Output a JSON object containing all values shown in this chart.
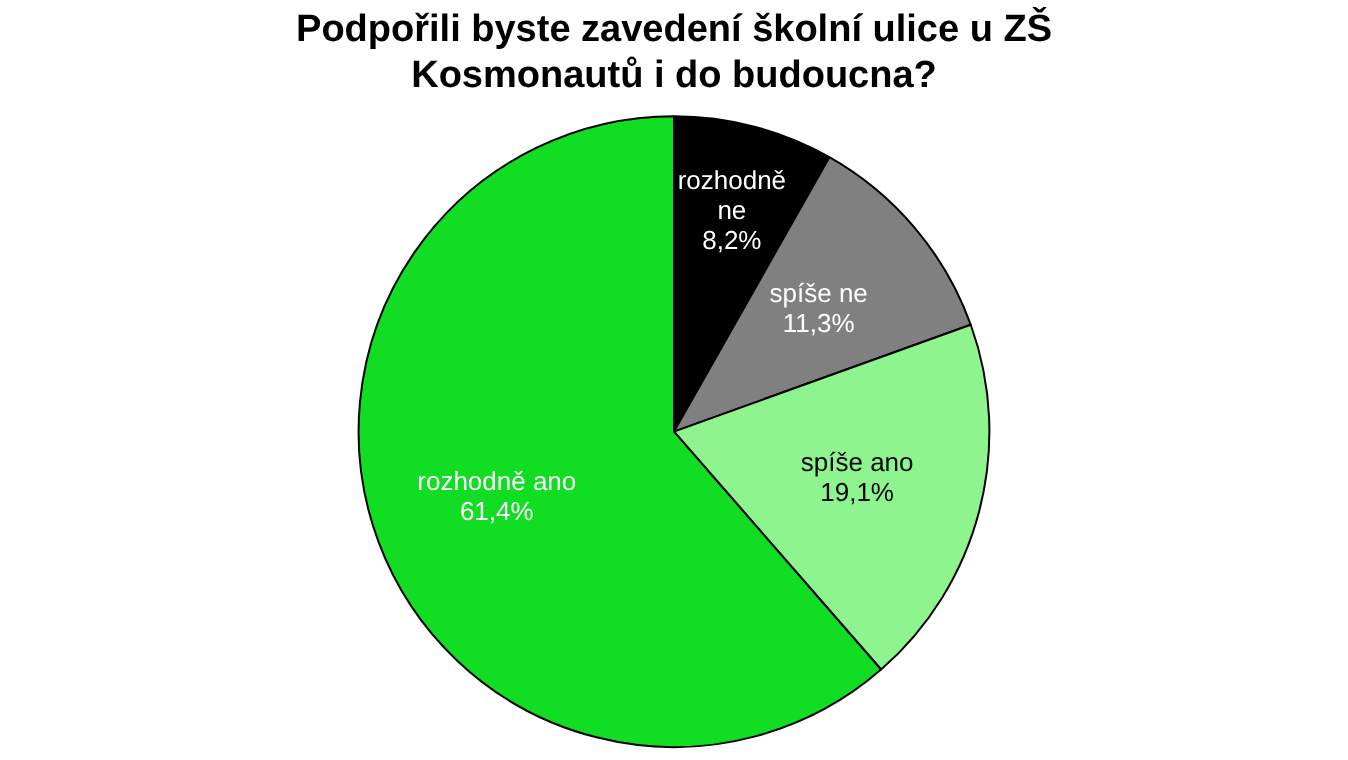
{
  "chart_data": {
    "type": "pie",
    "title": "Podpořili byste zavedení školní ulice u ZŠ Kosmonautů i do budoucna?",
    "categories": [
      "rozhodně ne",
      "spíše ne",
      "spíše ano",
      "rozhodně ano"
    ],
    "values": [
      8.2,
      11.3,
      19.1,
      61.4
    ],
    "colors": [
      "#000000",
      "#808080",
      "#8ef58e",
      "#11dd22"
    ],
    "value_labels": [
      "8,2%",
      "11,3%",
      "19,1%",
      "61,4%"
    ],
    "legend": false
  }
}
